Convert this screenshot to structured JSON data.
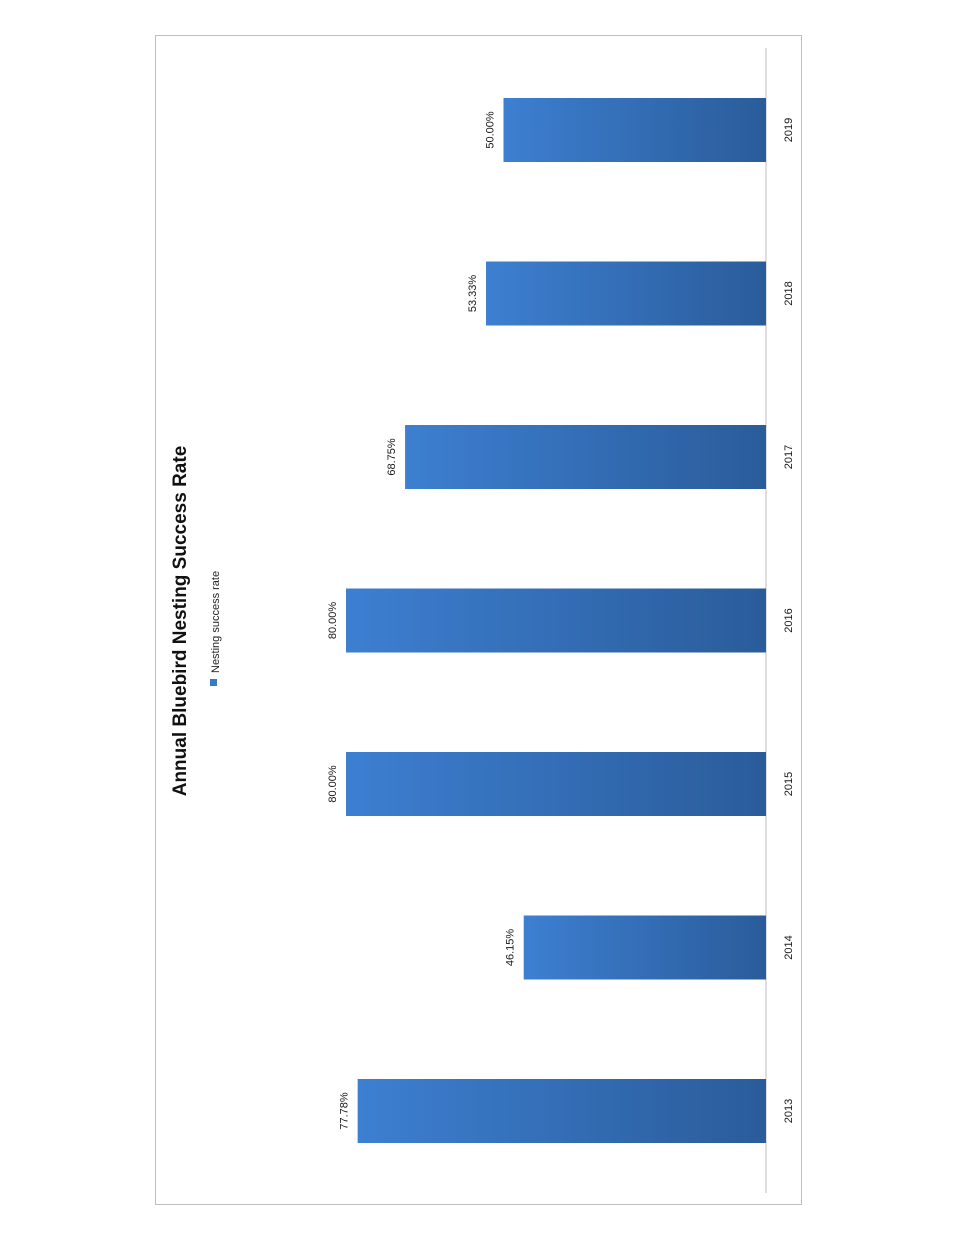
{
  "chart_data": {
    "type": "bar",
    "orientation": "rotated-90",
    "title": "Annual Bluebird Nesting Success Rate",
    "legend_position": "top",
    "categories": [
      "2013",
      "2014",
      "2015",
      "2016",
      "2017",
      "2018",
      "2019"
    ],
    "series": [
      {
        "name": "Nesting success rate",
        "values": [
          77.78,
          46.15,
          80.0,
          80.0,
          68.75,
          53.33,
          50.0
        ],
        "labels": [
          "77.78%",
          "46.15%",
          "80.00%",
          "80.00%",
          "68.75%",
          "53.33%",
          "50.00%"
        ]
      }
    ],
    "ylim": [
      0,
      100
    ],
    "grid": false,
    "colors": {
      "bar_light": "#3d7fd1",
      "bar_dark": "#2a5c9a",
      "axis": "#bfbfbf",
      "legend_swatch": "#3a78c8"
    }
  }
}
